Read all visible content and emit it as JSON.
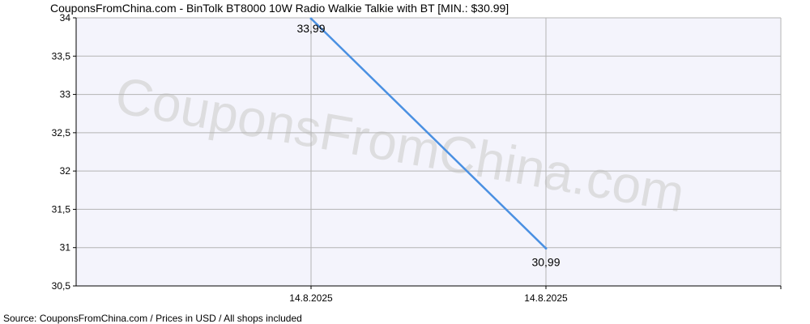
{
  "chart_data": {
    "type": "line",
    "title": "CouponsFromChina.com - BinTolk BT8000 10W Radio Walkie Talkie with BT [MIN.: $30.99]",
    "categories": [
      "14.8.2025",
      "14.8.2025"
    ],
    "series": [
      {
        "values": [
          33.99,
          30.99
        ],
        "labels": [
          "33,99",
          "30,99"
        ],
        "color": "#4a90e2"
      }
    ],
    "y_ticks": [
      "34",
      "33,5",
      "33",
      "32,5",
      "32",
      "31,5",
      "31",
      "30,5"
    ],
    "y_tick_values": [
      34,
      33.5,
      33,
      32.5,
      32,
      31.5,
      31,
      30.5
    ],
    "ylim": [
      30.5,
      34
    ],
    "grid": true,
    "plot_background": "#f4f4fc",
    "grid_color": "#b4b4b4"
  },
  "watermark": "CouponsFromChina.com",
  "footer": "Source: CouponsFromChina.com / Prices in USD / All shops included"
}
